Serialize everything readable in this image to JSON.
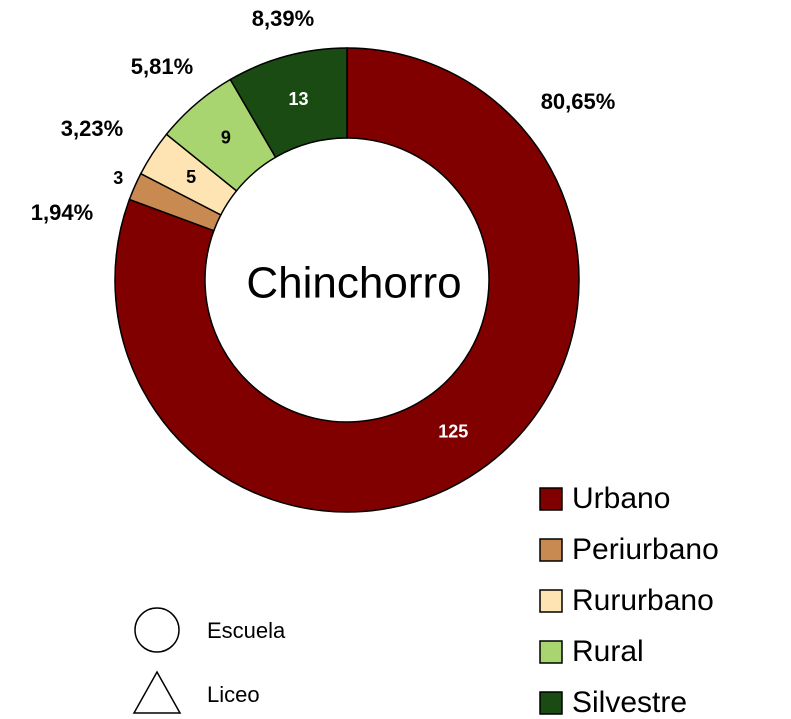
{
  "chart_data": {
    "type": "donut",
    "center_label": "Chinchorro",
    "categories": [
      "Urbano",
      "Periurbano",
      "Rururbano",
      "Rural",
      "Silvestre"
    ],
    "values": [
      125,
      3,
      5,
      9,
      13
    ],
    "share_labels": [
      "80,65%",
      "1,94%",
      "3,23%",
      "5,81%",
      "8,39%"
    ],
    "colors": [
      "#800000",
      "#c98a52",
      "#fde4b2",
      "#a8d56f",
      "#1a4b13"
    ],
    "markers": [
      {
        "label": "Escuela",
        "shape": "circle"
      },
      {
        "label": "Liceo",
        "shape": "triangle"
      }
    ]
  }
}
